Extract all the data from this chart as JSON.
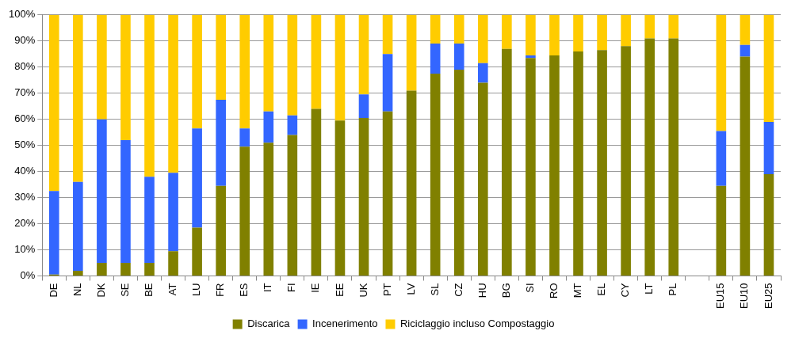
{
  "chart_data": {
    "type": "bar",
    "stacked": true,
    "categories": [
      "DE",
      "NL",
      "DK",
      "SE",
      "BE",
      "AT",
      "LU",
      "FR",
      "ES",
      "IT",
      "FI",
      "IE",
      "EE",
      "UK",
      "PT",
      "LV",
      "SL",
      "CZ",
      "HU",
      "BG",
      "SI",
      "RO",
      "MT",
      "EL",
      "CY",
      "LT",
      "PL",
      null,
      "EU15",
      "EU10",
      "EU25"
    ],
    "series": [
      {
        "name": "Discarica",
        "color": "#808000",
        "values": [
          0.5,
          2,
          5,
          5,
          5,
          9.5,
          18.5,
          34.5,
          49.5,
          51,
          54,
          64,
          59.5,
          60.5,
          63,
          71,
          77.5,
          79,
          74,
          87,
          83.5,
          84.5,
          86,
          86.5,
          88,
          91,
          91,
          null,
          34.5,
          84,
          39
        ]
      },
      {
        "name": "Incenerimento",
        "color": "#3366ff",
        "values": [
          32,
          34,
          55,
          47,
          33,
          30,
          38,
          33,
          7,
          12,
          7.5,
          0,
          0,
          9,
          22,
          0,
          11.5,
          10,
          7.5,
          0,
          1,
          0,
          0,
          0,
          0,
          0,
          0,
          null,
          21,
          4.5,
          20
        ]
      },
      {
        "name": "Riciclaggio incluso Compostaggio",
        "color": "#ffcc00",
        "values": [
          67.5,
          64,
          40,
          48,
          62,
          60.5,
          43.5,
          32.5,
          43.5,
          37,
          38.5,
          36,
          40.5,
          30.5,
          15,
          29,
          11,
          11,
          18.5,
          13,
          15.5,
          15.5,
          14,
          13.5,
          12,
          9,
          9,
          null,
          44.5,
          11.5,
          41
        ]
      }
    ],
    "ylim": [
      0,
      100
    ],
    "yticks": [
      {
        "value": 0,
        "label": "0%"
      },
      {
        "value": 10,
        "label": "10%"
      },
      {
        "value": 20,
        "label": "20%"
      },
      {
        "value": 30,
        "label": "30%"
      },
      {
        "value": 40,
        "label": "40%"
      },
      {
        "value": 50,
        "label": "50%"
      },
      {
        "value": 60,
        "label": "60%"
      },
      {
        "value": 70,
        "label": "70%"
      },
      {
        "value": 80,
        "label": "80%"
      },
      {
        "value": 90,
        "label": "90%"
      },
      {
        "value": 100,
        "label": "100%"
      }
    ],
    "grid": "y",
    "legend": "bottom"
  }
}
